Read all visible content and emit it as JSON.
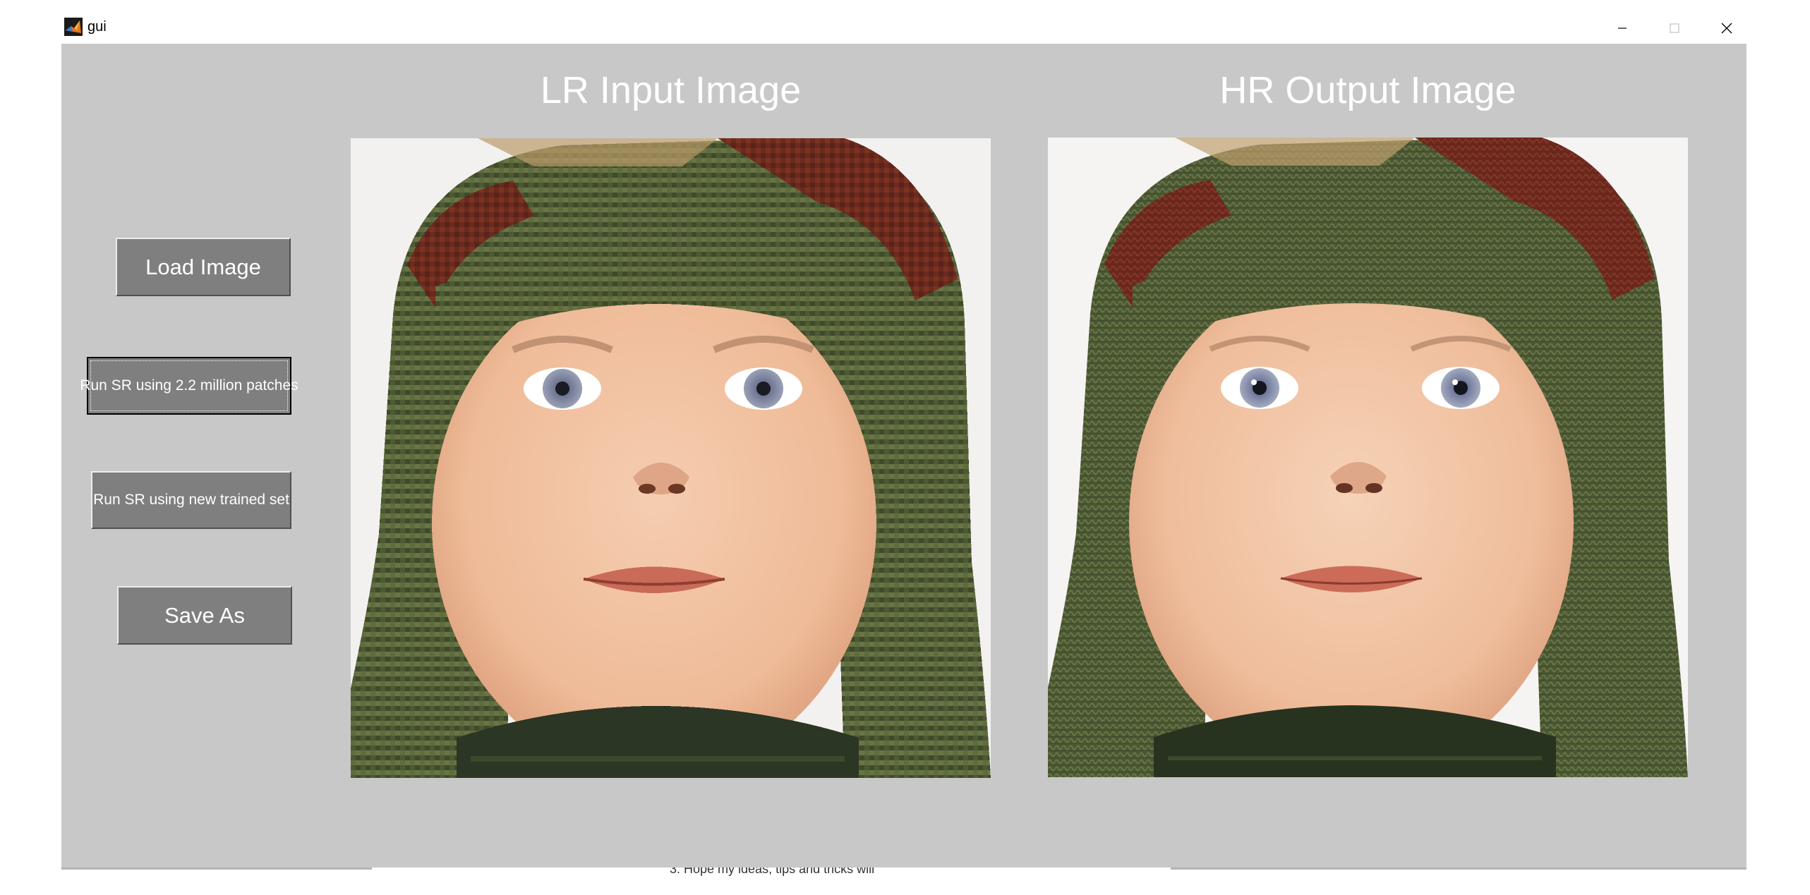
{
  "window": {
    "title": "gui",
    "controls": {
      "minimize": "minimize-icon",
      "maximize": "maximize-icon",
      "close": "close-icon"
    }
  },
  "panels": {
    "lr": {
      "title": "LR Input Image"
    },
    "hr": {
      "title": "HR Output Image"
    }
  },
  "buttons": {
    "load": "Load Image",
    "run_million": "Run SR using 2.2 million patches",
    "run_new": "Run SR using new trained set",
    "save": "Save As"
  },
  "background_text": "3. Hope my ideas, tips and tricks will",
  "colors": {
    "figure_bg": "#c8c8c8",
    "button_bg": "#7f7f7f",
    "text_white": "#ffffff"
  }
}
